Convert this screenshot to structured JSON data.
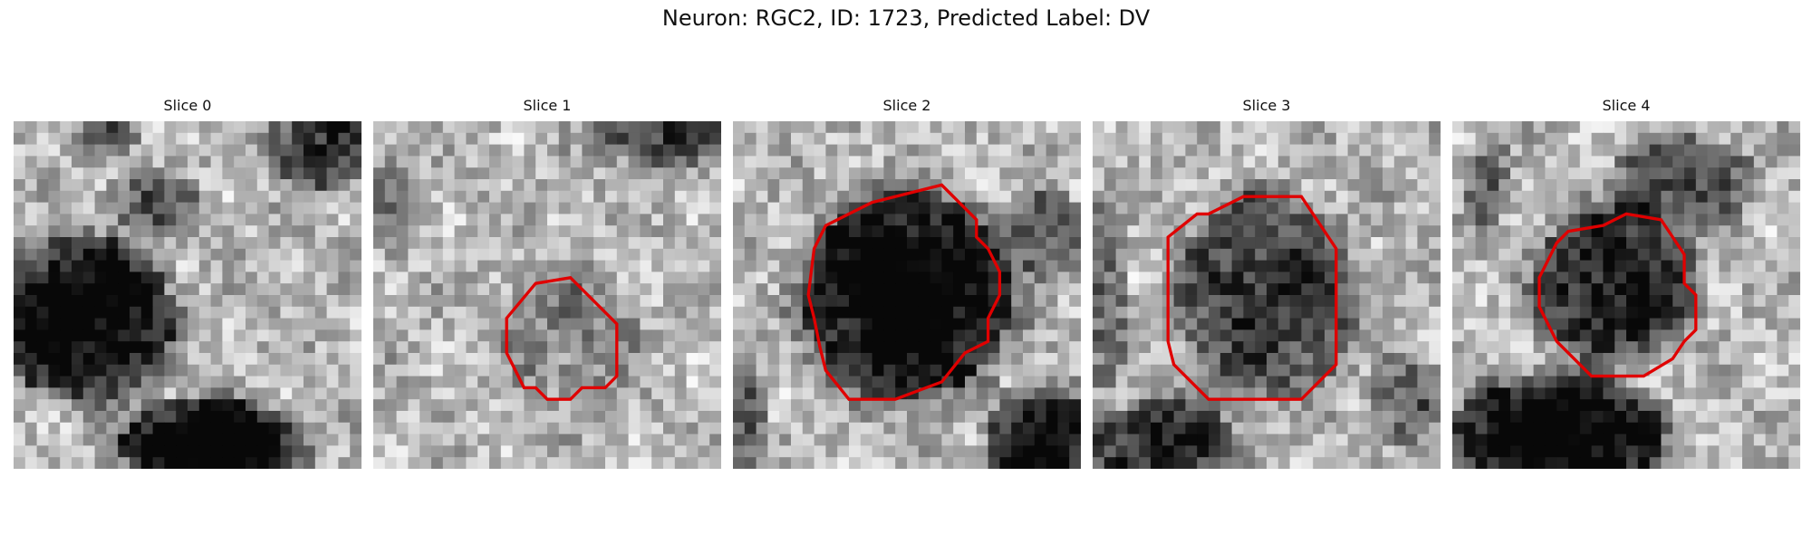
{
  "figure": {
    "title": "Neuron: RGC2, ID: 1723, Predicted Label: DV"
  },
  "contour_color": "#e00000",
  "panels": [
    {
      "title": "Slice 0",
      "has_contour": false
    },
    {
      "title": "Slice 1",
      "has_contour": true
    },
    {
      "title": "Slice 2",
      "has_contour": true
    },
    {
      "title": "Slice 3",
      "has_contour": true
    },
    {
      "title": "Slice 4",
      "has_contour": true
    }
  ]
}
